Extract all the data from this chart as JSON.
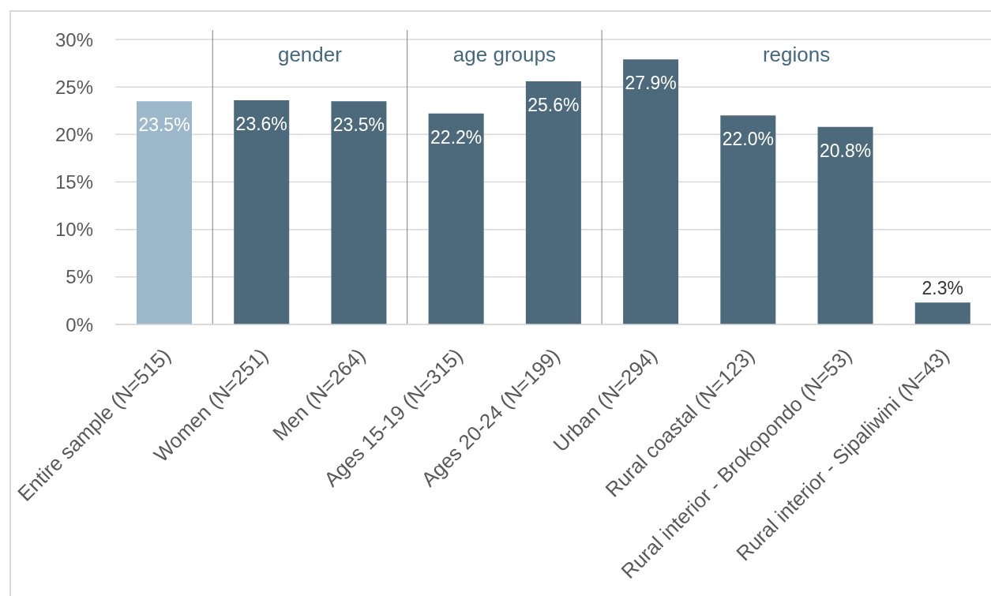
{
  "chart_data": {
    "type": "bar",
    "categories": [
      "Entire sample (N=515)",
      "Women (N=251)",
      "Men (N=264)",
      "Ages 15-19 (N=315)",
      "Ages 20-24 (N=199)",
      "Urban (N=294)",
      "Rural coastal (N=123)",
      "Rural interior - Brokopondo (N=53)",
      "Rural interior - Sipaliwini (N=43)"
    ],
    "values": [
      23.5,
      23.6,
      23.5,
      22.2,
      25.6,
      27.9,
      22.0,
      20.8,
      2.3
    ],
    "colors": [
      "#9db8cb",
      "#4d6a7d",
      "#4d6a7d",
      "#4d6a7d",
      "#4d6a7d",
      "#4d6a7d",
      "#4d6a7d",
      "#4d6a7d",
      "#4d6a7d"
    ],
    "value_labels": [
      "23.5%",
      "23.6%",
      "23.5%",
      "22.2%",
      "25.6%",
      "27.9%",
      "22.0%",
      "20.8%",
      "2.3%"
    ],
    "ylim": [
      0,
      30
    ],
    "yticks": [
      {
        "value": 0,
        "label": "0%"
      },
      {
        "value": 5,
        "label": "5%"
      },
      {
        "value": 10,
        "label": "10%"
      },
      {
        "value": 15,
        "label": "15%"
      },
      {
        "value": 20,
        "label": "20%"
      },
      {
        "value": 25,
        "label": "25%"
      },
      {
        "value": 30,
        "label": "30%"
      }
    ],
    "grid": "y",
    "annotations": [
      "gender",
      "age groups",
      "regions"
    ]
  }
}
